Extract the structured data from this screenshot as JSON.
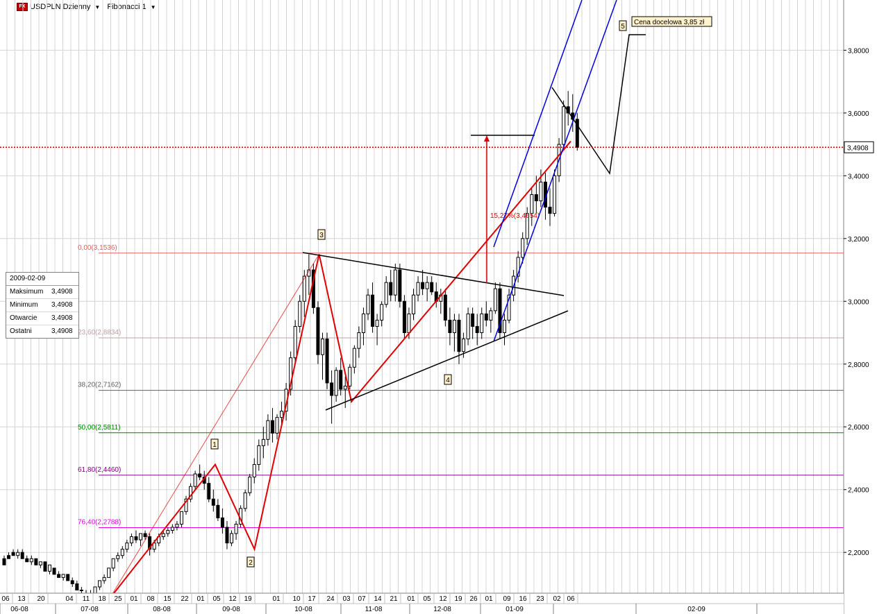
{
  "header": {
    "symbol_label": "USDPLN Dzienny",
    "fx_badge": "FX",
    "indicator_label": "Fibonacci 1",
    "dropdown_glyph": "▼"
  },
  "infobox": {
    "date": "2009-02-09",
    "rows": [
      {
        "label": "Maksimum",
        "value": "3,4908"
      },
      {
        "label": "Minimum",
        "value": "3,4908"
      },
      {
        "label": "Otwarcie",
        "value": "3,4908"
      },
      {
        "label": "Ostatni",
        "value": "3,4908"
      }
    ]
  },
  "colors": {
    "grid": "#d4d4d4",
    "candle": "#000000",
    "wave": "#e00000",
    "channel": "#0000e0",
    "triangle": "#000000",
    "price_line": "#c00000",
    "target_box": "#fff2cc"
  },
  "chart_data": {
    "type": "candlestick",
    "title": "USDPLN Dzienny",
    "y_ticks": [
      "3,8000",
      "3,6000",
      "3,4000",
      "3,2000",
      "3,0000",
      "2,8000",
      "2,6000",
      "2,4000",
      "2,2000"
    ],
    "y_tick_values": [
      3.8,
      3.6,
      3.4,
      3.2,
      3.0,
      2.8,
      2.6,
      2.4,
      2.2
    ],
    "ylim": [
      2.07,
      3.96
    ],
    "x_day_labels": [
      "06",
      "13",
      "20",
      "04",
      "11",
      "18",
      "25",
      "01",
      "08",
      "15",
      "22",
      "01",
      "05",
      "12",
      "19",
      "01",
      "10",
      "17",
      "24",
      "03",
      "07",
      "14",
      "21",
      "01",
      "05",
      "12",
      "19",
      "26",
      "01",
      "09",
      "16",
      "23",
      "02",
      "06"
    ],
    "x_month_labels": [
      "06-08",
      "07-08",
      "08-08",
      "09-08",
      "10-08",
      "11-08",
      "12-08",
      "01-09",
      "02-09"
    ],
    "last_price": "3,4908",
    "last_value": 3.4908,
    "fibonacci_levels": [
      {
        "label": "0,00(3,1536)",
        "value": 3.1536,
        "color": "#e06060"
      },
      {
        "label": "23,60(2,8834)",
        "value": 2.8834,
        "color": "#c0a0a0"
      },
      {
        "label": "38,20(2,7162)",
        "value": 2.7162,
        "color": "#606060"
      },
      {
        "label": "50,00(2,5811)",
        "value": 2.5811,
        "color": "#008000"
      },
      {
        "label": "61,80(2,4460)",
        "value": 2.446,
        "color": "#800080"
      },
      {
        "label": "76,40(2,2788)",
        "value": 2.2788,
        "color": "#e000e0"
      }
    ],
    "wave_labels": [
      "1",
      "2",
      "3",
      "4",
      "5"
    ],
    "wave_points": [
      {
        "date": "2008-07-21",
        "value": 2.05
      },
      {
        "date": "2008-09-05",
        "value": 2.48
      },
      {
        "date": "2008-09-22",
        "value": 2.21
      },
      {
        "date": "2008-10-20",
        "value": 3.15
      },
      {
        "date": "2008-11-03",
        "value": 2.68
      },
      {
        "date": "2009-02-06",
        "value": 3.51
      }
    ],
    "projection_label": "15,27%(3,4654)",
    "target_label": "Cena docelowa 3,85 zł",
    "target_value": 3.85,
    "candles": [
      [
        2.18,
        2.19,
        2.17,
        2.16
      ],
      [
        2.19,
        2.2,
        2.18,
        2.18
      ],
      [
        2.2,
        2.21,
        2.19,
        2.19
      ],
      [
        2.19,
        2.21,
        2.18,
        2.2
      ],
      [
        2.2,
        2.21,
        2.18,
        2.18
      ],
      [
        2.18,
        2.19,
        2.17,
        2.17
      ],
      [
        2.17,
        2.19,
        2.16,
        2.18
      ],
      [
        2.18,
        2.18,
        2.16,
        2.16
      ],
      [
        2.16,
        2.17,
        2.15,
        2.17
      ],
      [
        2.17,
        2.17,
        2.14,
        2.14
      ],
      [
        2.14,
        2.16,
        2.13,
        2.16
      ],
      [
        2.15,
        2.15,
        2.13,
        2.13
      ],
      [
        2.13,
        2.14,
        2.12,
        2.12
      ],
      [
        2.12,
        2.13,
        2.11,
        2.13
      ],
      [
        2.13,
        2.13,
        2.11,
        2.11
      ],
      [
        2.11,
        2.12,
        2.09,
        2.1
      ],
      [
        2.1,
        2.11,
        2.08,
        2.08
      ],
      [
        2.08,
        2.09,
        2.07,
        2.08
      ],
      [
        2.07,
        2.08,
        2.06,
        2.06
      ],
      [
        2.06,
        2.08,
        2.06,
        2.07
      ],
      [
        2.07,
        2.09,
        2.06,
        2.09
      ],
      [
        2.09,
        2.11,
        2.08,
        2.11
      ],
      [
        2.11,
        2.13,
        2.1,
        2.12
      ],
      [
        2.12,
        2.15,
        2.12,
        2.15
      ],
      [
        2.15,
        2.18,
        2.14,
        2.18
      ],
      [
        2.18,
        2.2,
        2.17,
        2.19
      ],
      [
        2.19,
        2.22,
        2.18,
        2.21
      ],
      [
        2.21,
        2.24,
        2.2,
        2.23
      ],
      [
        2.23,
        2.26,
        2.22,
        2.25
      ],
      [
        2.25,
        2.27,
        2.23,
        2.24
      ],
      [
        2.24,
        2.26,
        2.22,
        2.26
      ],
      [
        2.26,
        2.27,
        2.24,
        2.25
      ],
      [
        2.25,
        2.26,
        2.19,
        2.21
      ],
      [
        2.21,
        2.24,
        2.2,
        2.23
      ],
      [
        2.23,
        2.26,
        2.22,
        2.25
      ],
      [
        2.25,
        2.27,
        2.24,
        2.26
      ],
      [
        2.26,
        2.28,
        2.25,
        2.27
      ],
      [
        2.27,
        2.29,
        2.26,
        2.28
      ],
      [
        2.28,
        2.3,
        2.27,
        2.29
      ],
      [
        2.29,
        2.33,
        2.28,
        2.33
      ],
      [
        2.33,
        2.38,
        2.32,
        2.37
      ],
      [
        2.37,
        2.42,
        2.36,
        2.41
      ],
      [
        2.41,
        2.46,
        2.4,
        2.45
      ],
      [
        2.45,
        2.48,
        2.43,
        2.44
      ],
      [
        2.44,
        2.46,
        2.4,
        2.42
      ],
      [
        2.42,
        2.44,
        2.36,
        2.37
      ],
      [
        2.37,
        2.4,
        2.33,
        2.35
      ],
      [
        2.35,
        2.37,
        2.3,
        2.31
      ],
      [
        2.31,
        2.34,
        2.26,
        2.28
      ],
      [
        2.28,
        2.3,
        2.21,
        2.23
      ],
      [
        2.23,
        2.27,
        2.22,
        2.26
      ],
      [
        2.26,
        2.3,
        2.24,
        2.29
      ],
      [
        2.29,
        2.35,
        2.28,
        2.34
      ],
      [
        2.34,
        2.4,
        2.33,
        2.39
      ],
      [
        2.39,
        2.45,
        2.38,
        2.44
      ],
      [
        2.44,
        2.5,
        2.42,
        2.48
      ],
      [
        2.48,
        2.56,
        2.46,
        2.54
      ],
      [
        2.54,
        2.6,
        2.5,
        2.56
      ],
      [
        2.56,
        2.64,
        2.54,
        2.62
      ],
      [
        2.62,
        2.66,
        2.55,
        2.58
      ],
      [
        2.58,
        2.64,
        2.56,
        2.63
      ],
      [
        2.63,
        2.68,
        2.6,
        2.65
      ],
      [
        2.65,
        2.74,
        2.62,
        2.72
      ],
      [
        2.72,
        2.84,
        2.7,
        2.82
      ],
      [
        2.82,
        2.94,
        2.8,
        2.92
      ],
      [
        2.92,
        3.02,
        2.9,
        3.0
      ],
      [
        3.0,
        3.1,
        2.95,
        3.08
      ],
      [
        3.08,
        3.15,
        3.02,
        3.1
      ],
      [
        3.1,
        3.12,
        2.96,
        2.98
      ],
      [
        2.98,
        3.0,
        2.8,
        2.83
      ],
      [
        2.83,
        2.9,
        2.75,
        2.88
      ],
      [
        2.88,
        2.9,
        2.72,
        2.74
      ],
      [
        2.74,
        2.78,
        2.61,
        2.7
      ],
      [
        2.7,
        2.79,
        2.68,
        2.78
      ],
      [
        2.78,
        2.82,
        2.7,
        2.72
      ],
      [
        2.72,
        2.76,
        2.66,
        2.73
      ],
      [
        2.73,
        2.8,
        2.72,
        2.79
      ],
      [
        2.79,
        2.86,
        2.77,
        2.85
      ],
      [
        2.85,
        2.92,
        2.82,
        2.9
      ],
      [
        2.9,
        2.98,
        2.86,
        2.96
      ],
      [
        2.96,
        3.04,
        2.94,
        3.02
      ],
      [
        3.02,
        3.06,
        2.9,
        2.92
      ],
      [
        2.92,
        2.96,
        2.86,
        2.94
      ],
      [
        2.94,
        3.0,
        2.92,
        2.99
      ],
      [
        2.99,
        3.08,
        2.98,
        3.06
      ],
      [
        3.06,
        3.1,
        3.0,
        3.02
      ],
      [
        3.02,
        3.12,
        3.0,
        3.1
      ],
      [
        3.1,
        3.12,
        2.98,
        3.0
      ],
      [
        3.0,
        3.02,
        2.88,
        2.9
      ],
      [
        2.9,
        2.98,
        2.88,
        2.96
      ],
      [
        2.96,
        3.04,
        2.94,
        3.02
      ],
      [
        3.02,
        3.08,
        3.0,
        3.06
      ],
      [
        3.06,
        3.1,
        3.02,
        3.04
      ],
      [
        3.04,
        3.08,
        3.0,
        3.06
      ],
      [
        3.06,
        3.08,
        3.02,
        3.03
      ],
      [
        3.03,
        3.06,
        2.98,
        3.0
      ],
      [
        3.0,
        3.04,
        2.96,
        3.02
      ],
      [
        3.02,
        3.04,
        2.92,
        2.94
      ],
      [
        2.94,
        2.98,
        2.86,
        2.9
      ],
      [
        2.9,
        2.96,
        2.84,
        2.94
      ],
      [
        2.94,
        2.96,
        2.8,
        2.84
      ],
      [
        2.84,
        2.9,
        2.82,
        2.88
      ],
      [
        2.88,
        2.98,
        2.86,
        2.96
      ],
      [
        2.96,
        2.98,
        2.88,
        2.92
      ],
      [
        2.92,
        2.96,
        2.86,
        2.9
      ],
      [
        2.9,
        2.98,
        2.88,
        2.96
      ],
      [
        2.96,
        3.0,
        2.92,
        2.94
      ],
      [
        2.94,
        2.98,
        2.9,
        2.97
      ],
      [
        2.97,
        3.06,
        2.96,
        3.04
      ],
      [
        3.04,
        3.06,
        2.88,
        2.9
      ],
      [
        2.9,
        2.96,
        2.86,
        2.94
      ],
      [
        2.94,
        3.04,
        2.93,
        3.02
      ],
      [
        3.02,
        3.1,
        3.0,
        3.08
      ],
      [
        3.08,
        3.16,
        3.06,
        3.14
      ],
      [
        3.14,
        3.22,
        3.12,
        3.2
      ],
      [
        3.2,
        3.3,
        3.18,
        3.28
      ],
      [
        3.28,
        3.36,
        3.24,
        3.34
      ],
      [
        3.34,
        3.4,
        3.28,
        3.32
      ],
      [
        3.32,
        3.42,
        3.3,
        3.38
      ],
      [
        3.38,
        3.41,
        3.26,
        3.3
      ],
      [
        3.3,
        3.36,
        3.24,
        3.28
      ],
      [
        3.28,
        3.42,
        3.27,
        3.4
      ],
      [
        3.4,
        3.52,
        3.38,
        3.5
      ],
      [
        3.5,
        3.64,
        3.48,
        3.62
      ],
      [
        3.62,
        3.67,
        3.56,
        3.6
      ],
      [
        3.6,
        3.66,
        3.54,
        3.58
      ],
      [
        3.58,
        3.6,
        3.48,
        3.4908
      ]
    ]
  }
}
